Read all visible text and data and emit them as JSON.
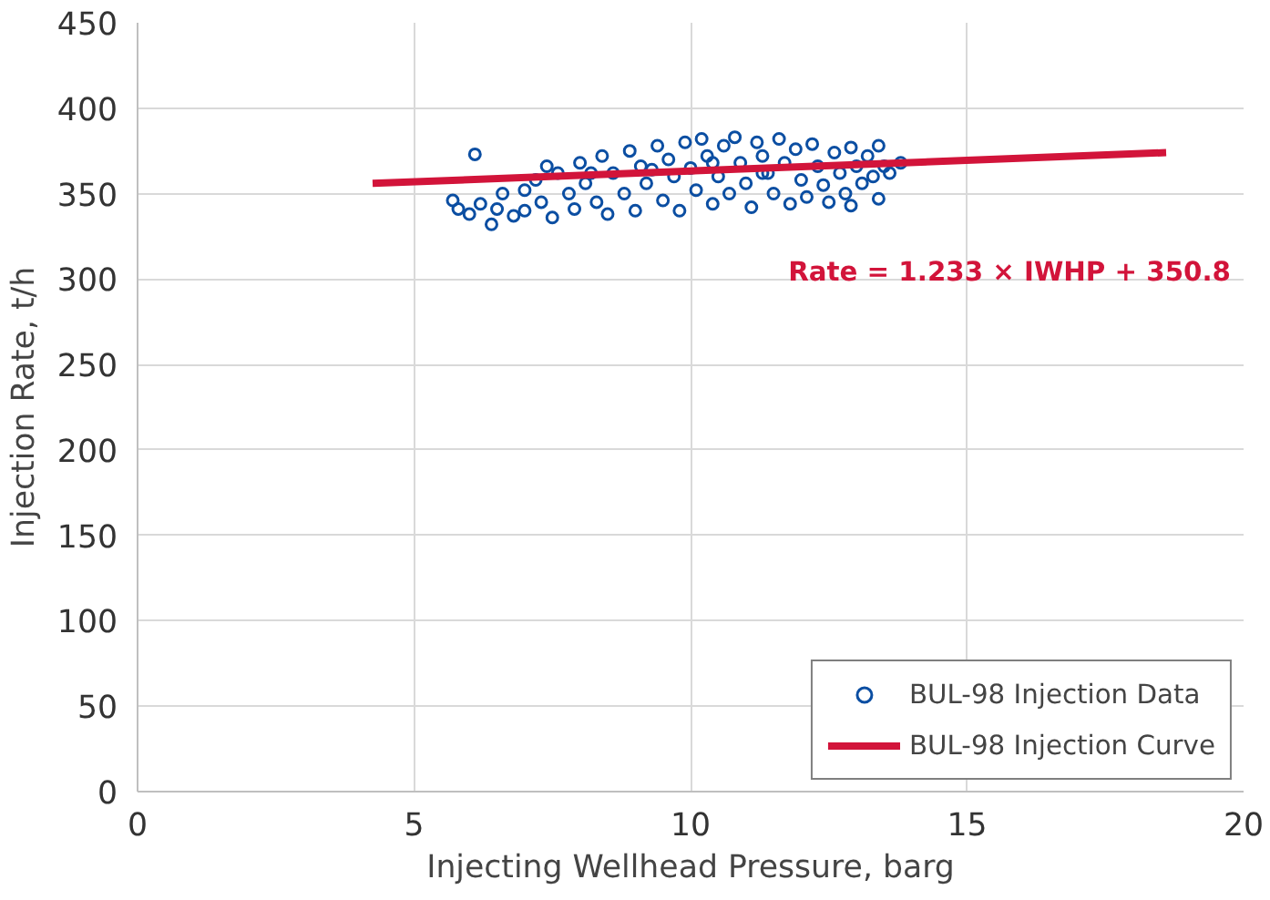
{
  "chart_data": {
    "type": "scatter",
    "xlabel": "Injecting Wellhead Pressure, barg",
    "ylabel": "Injection Rate, t/h",
    "xlim": [
      0,
      20
    ],
    "xticks": [
      0,
      5,
      10,
      15,
      20
    ],
    "ylim": [
      0,
      450
    ],
    "yticks": [
      0,
      50,
      100,
      150,
      200,
      250,
      300,
      350,
      400,
      450
    ],
    "grid": true,
    "legend": "bottom right",
    "annotations": [
      "Rate = 1.233 × IWHP + 350.8"
    ],
    "series": [
      {
        "name": "BUL-98 Injection Data",
        "marker": "circle",
        "color": "#0b4ea2",
        "x": [
          5.7,
          5.8,
          6.0,
          6.1,
          6.2,
          6.4,
          6.5,
          6.6,
          6.8,
          7.0,
          7.0,
          7.2,
          7.3,
          7.5,
          7.6,
          7.8,
          7.9,
          8.0,
          8.1,
          8.3,
          8.4,
          8.5,
          8.6,
          8.8,
          8.9,
          9.0,
          9.1,
          9.2,
          9.4,
          9.5,
          9.6,
          9.7,
          9.8,
          9.9,
          10.0,
          10.1,
          10.2,
          10.3,
          10.4,
          10.5,
          10.6,
          10.7,
          10.8,
          10.9,
          11.0,
          11.1,
          11.2,
          11.3,
          11.4,
          11.5,
          11.6,
          11.7,
          11.8,
          11.9,
          12.0,
          12.1,
          12.2,
          12.3,
          12.4,
          12.5,
          12.6,
          12.7,
          12.8,
          12.9,
          13.0,
          13.1,
          13.2,
          13.3,
          13.4,
          13.5,
          13.6,
          13.8,
          13.4,
          12.9,
          8.2,
          9.3,
          10.4,
          11.3,
          7.4
        ],
        "values": [
          346,
          341,
          338,
          373,
          344,
          332,
          341,
          350,
          337,
          352,
          340,
          358,
          345,
          336,
          362,
          350,
          341,
          368,
          356,
          345,
          372,
          338,
          362,
          350,
          375,
          340,
          366,
          356,
          378,
          346,
          370,
          360,
          340,
          380,
          365,
          352,
          382,
          372,
          344,
          360,
          378,
          350,
          383,
          368,
          356,
          342,
          380,
          372,
          362,
          350,
          382,
          368,
          344,
          376,
          358,
          348,
          379,
          366,
          355,
          345,
          374,
          362,
          350,
          377,
          366,
          356,
          372,
          360,
          378,
          366,
          362,
          368,
          347,
          343,
          362,
          364,
          368,
          362,
          366
        ]
      },
      {
        "name": "BUL-98 Injection Curve",
        "type": "line",
        "color": "#d2143a",
        "x": [
          4.25,
          18.6
        ],
        "values": [
          356,
          374
        ]
      }
    ]
  }
}
